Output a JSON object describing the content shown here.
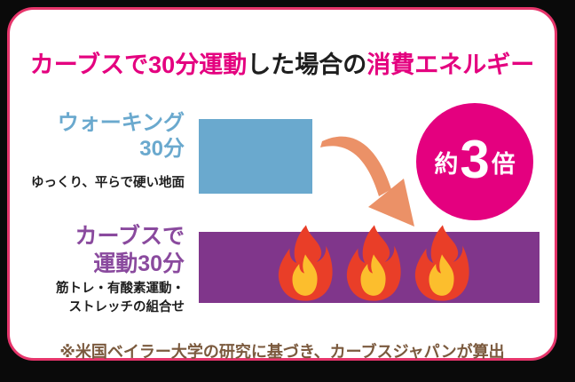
{
  "title": {
    "segments": [
      {
        "text": "カーブスで30分運動",
        "color": "#e4007f"
      },
      {
        "text": "した場合の",
        "color": "#1e1e1e"
      },
      {
        "text": "消費エネルギー",
        "color": "#e4007f"
      }
    ]
  },
  "walking": {
    "label_line1": "ウォーキング",
    "label_line2": "30分",
    "subtitle": "ゆっくり、平らで硬い地面"
  },
  "curves": {
    "label_line1": "カーブスで",
    "label_line2": "運動30分",
    "subtitle_line1": "筋トレ・有酸素運動・",
    "subtitle_line2": "ストレッチの組合せ",
    "flame_count": 3
  },
  "badge": {
    "prefix": "約",
    "value": "3",
    "suffix": "倍"
  },
  "footnote": "※米国ベイラー大学の研究に基づき、カーブスジャパンが算出",
  "colors": {
    "accent_pink": "#e4007f",
    "bar_blue": "#6aa9ce",
    "bar_purple": "#80368b",
    "label_purple": "#8a4a9e",
    "arrow_orange": "#eb9167",
    "flame_red": "#e93e28",
    "flame_yellow": "#fcbe2d",
    "footnote_brown": "#7b5a3e",
    "card_border": "#e6356b"
  },
  "chart_data": {
    "type": "bar",
    "title": "カーブスで30分運動した場合の消費エネルギー",
    "categories": [
      "ウォーキング30分",
      "カーブスで運動30分"
    ],
    "values": [
      1,
      3
    ],
    "annotation": "約3倍",
    "orientation": "horizontal",
    "legend": "off",
    "axes": "off"
  }
}
